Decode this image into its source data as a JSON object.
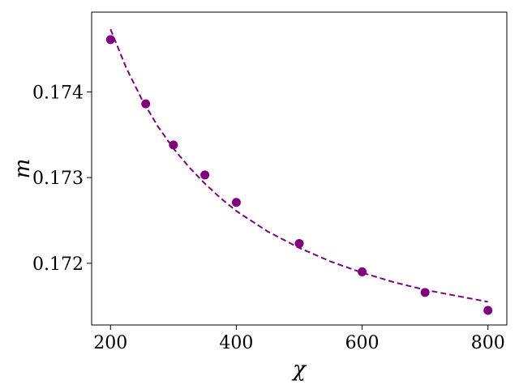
{
  "chart_data": {
    "type": "scatter",
    "xlabel": "χ",
    "ylabel": "m",
    "xlim": [
      170,
      830
    ],
    "ylim": [
      0.17128,
      0.17493
    ],
    "x_ticks": [
      200,
      400,
      600,
      800
    ],
    "x_tick_labels": [
      "200",
      "400",
      "600",
      "800"
    ],
    "y_ticks": [
      0.172,
      0.173,
      0.174
    ],
    "y_tick_labels": [
      "0.172",
      "0.173",
      "0.174"
    ],
    "grid": false,
    "series": [
      {
        "kind": "scatter",
        "color": "#800080",
        "x": [
          200,
          256,
          300,
          350,
          400,
          500,
          600,
          700,
          800
        ],
        "y": [
          0.17461,
          0.17386,
          0.17338,
          0.17303,
          0.17271,
          0.17223,
          0.1719,
          0.17166,
          0.17145
        ]
      },
      {
        "kind": "line",
        "style": "dashed",
        "color": "#800080",
        "x": [
          200,
          225,
          250,
          275,
          300,
          325,
          350,
          375,
          400,
          450,
          500,
          550,
          600,
          650,
          700,
          750,
          800
        ],
        "y": [
          0.17473,
          0.17428,
          0.17391,
          0.1736,
          0.17334,
          0.17312,
          0.17293,
          0.17276,
          0.17261,
          0.17237,
          0.17218,
          0.17202,
          0.17189,
          0.17178,
          0.17169,
          0.17162,
          0.17155
        ]
      }
    ]
  }
}
